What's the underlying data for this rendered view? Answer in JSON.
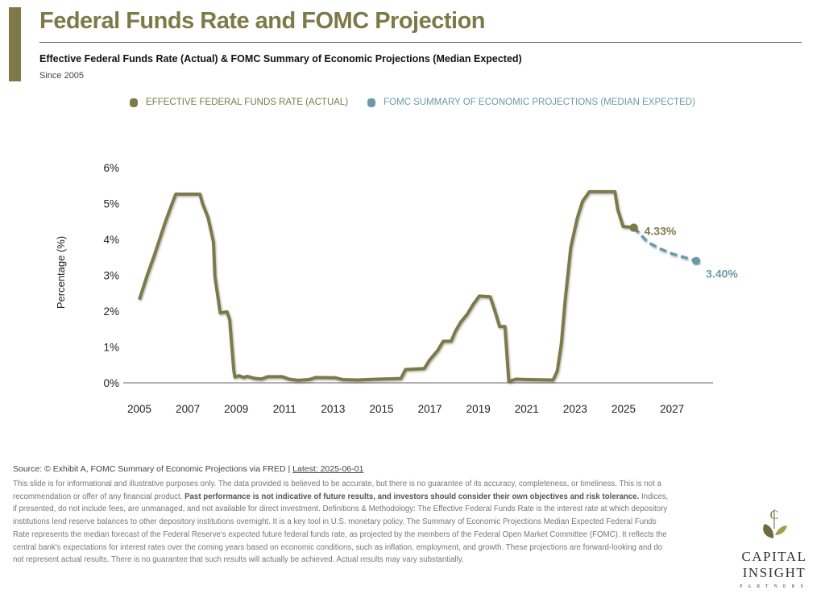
{
  "header": {
    "title": "Federal Funds Rate and FOMC Projection",
    "subtitle": "Effective Federal Funds Rate (Actual) & FOMC Summary of Economic Projections (Median Expected)",
    "since": "Since 2005"
  },
  "colors": {
    "actual": "#7d7a48",
    "projection": "#6a9aa8"
  },
  "chart_data": {
    "type": "line",
    "title": "Federal Funds Rate and FOMC Projection",
    "xlabel": "",
    "ylabel": "Percentage (%)",
    "xlim": [
      2004.4,
      2029.0
    ],
    "ylim": [
      0,
      6
    ],
    "x_ticks": [
      "2005",
      "2007",
      "2009",
      "2011",
      "2013",
      "2015",
      "2017",
      "2019",
      "2021",
      "2023",
      "2025",
      "2027"
    ],
    "y_ticks": [
      "0%",
      "1%",
      "2%",
      "3%",
      "4%",
      "5%",
      "6%"
    ],
    "legend": [
      "EFFECTIVE FEDERAL FUNDS RATE (ACTUAL)",
      "FOMC SUMMARY OF ECONOMIC PROJECTIONS (MEDIAN EXPECTED)"
    ],
    "legend_position": "top",
    "series": [
      {
        "name": "EFFECTIVE FEDERAL FUNDS RATE (ACTUAL)",
        "points": [
          [
            2005.0,
            2.32
          ],
          [
            2005.34,
            3.03
          ],
          [
            2005.62,
            3.56
          ],
          [
            2006.06,
            4.46
          ],
          [
            2006.34,
            4.98
          ],
          [
            2006.5,
            5.26
          ],
          [
            2007.5,
            5.26
          ],
          [
            2007.62,
            4.98
          ],
          [
            2007.84,
            4.6
          ],
          [
            2008.06,
            3.93
          ],
          [
            2008.12,
            2.96
          ],
          [
            2008.34,
            1.95
          ],
          [
            2008.62,
            1.98
          ],
          [
            2008.73,
            1.76
          ],
          [
            2008.9,
            0.34
          ],
          [
            2008.95,
            0.16
          ],
          [
            2009.12,
            0.2
          ],
          [
            2009.3,
            0.15
          ],
          [
            2009.45,
            0.18
          ],
          [
            2009.8,
            0.12
          ],
          [
            2010.05,
            0.11
          ],
          [
            2010.3,
            0.17
          ],
          [
            2010.9,
            0.17
          ],
          [
            2011.2,
            0.1
          ],
          [
            2011.55,
            0.07
          ],
          [
            2012.0,
            0.09
          ],
          [
            2012.3,
            0.15
          ],
          [
            2013.1,
            0.14
          ],
          [
            2013.4,
            0.09
          ],
          [
            2014.0,
            0.08
          ],
          [
            2014.8,
            0.1
          ],
          [
            2015.8,
            0.12
          ],
          [
            2015.99,
            0.37
          ],
          [
            2016.77,
            0.4
          ],
          [
            2016.99,
            0.64
          ],
          [
            2017.32,
            0.9
          ],
          [
            2017.55,
            1.16
          ],
          [
            2017.88,
            1.16
          ],
          [
            2018.04,
            1.42
          ],
          [
            2018.27,
            1.69
          ],
          [
            2018.54,
            1.91
          ],
          [
            2018.77,
            2.17
          ],
          [
            2019.04,
            2.42
          ],
          [
            2019.49,
            2.4
          ],
          [
            2019.66,
            2.06
          ],
          [
            2019.88,
            1.57
          ],
          [
            2020.1,
            1.57
          ],
          [
            2020.26,
            0.04
          ],
          [
            2020.54,
            0.1
          ],
          [
            2021.1,
            0.09
          ],
          [
            2022.09,
            0.08
          ],
          [
            2022.26,
            0.33
          ],
          [
            2022.43,
            1.09
          ],
          [
            2022.59,
            2.32
          ],
          [
            2022.82,
            3.78
          ],
          [
            2023.09,
            4.6
          ],
          [
            2023.31,
            5.07
          ],
          [
            2023.59,
            5.33
          ],
          [
            2024.64,
            5.33
          ],
          [
            2024.76,
            4.83
          ],
          [
            2024.98,
            4.36
          ],
          [
            2025.42,
            4.33
          ]
        ]
      },
      {
        "name": "FOMC SUMMARY OF ECONOMIC PROJECTIONS (MEDIAN EXPECTED)",
        "points": [
          [
            2025.42,
            4.33
          ],
          [
            2025.75,
            4.1
          ],
          [
            2026.0,
            3.92
          ],
          [
            2026.5,
            3.74
          ],
          [
            2027.0,
            3.6
          ],
          [
            2028.0,
            3.4
          ]
        ]
      }
    ],
    "annotations": [
      {
        "label": "4.33%",
        "x": 2025.42,
        "y": 4.33
      },
      {
        "label": "3.40%",
        "x": 2028.0,
        "y": 3.4
      }
    ]
  },
  "footer": {
    "source": "Source: © Exhibit A, FOMC Summary of Economic Projections via FRED | ",
    "latest": "Latest: 2025-06-01",
    "disclaimer_1": "This slide is for informational and illustrative purposes only. The data provided is believed to be accurate, but there is no guarantee of its accuracy, completeness, or timeliness. This is not a recommendation or offer of any financial product. ",
    "disclaimer_bold": "Past performance is not indicative of future results, and investors should consider their own objectives and risk tolerance.",
    "disclaimer_2": " Indices, if presented, do not include fees, are unmanaged, and not available for direct investment. Definitions & Methodology: The Effective Federal Funds Rate is the interest rate at which depository institutions lend reserve balances to other depository institutions overnight. It is a key tool in U.S. monetary policy. The Summary of Economic Projections Median Expected Federal Funds Rate represents the median forecast of the Federal Reserve's expected future federal funds rate, as projected by the members of the Federal Open Market Committee (FOMC). It reflects the central bank's expectations for interest rates over the coming years based on economic conditions, such as inflation, employment, and growth. These projections are forward-looking and do not represent actual results. There is no guarantee that such results will actually be achieved. Actual results may vary substantially."
  },
  "logo": {
    "name": "CAPITAL INSIGHT",
    "sub": "PARTNERS"
  }
}
